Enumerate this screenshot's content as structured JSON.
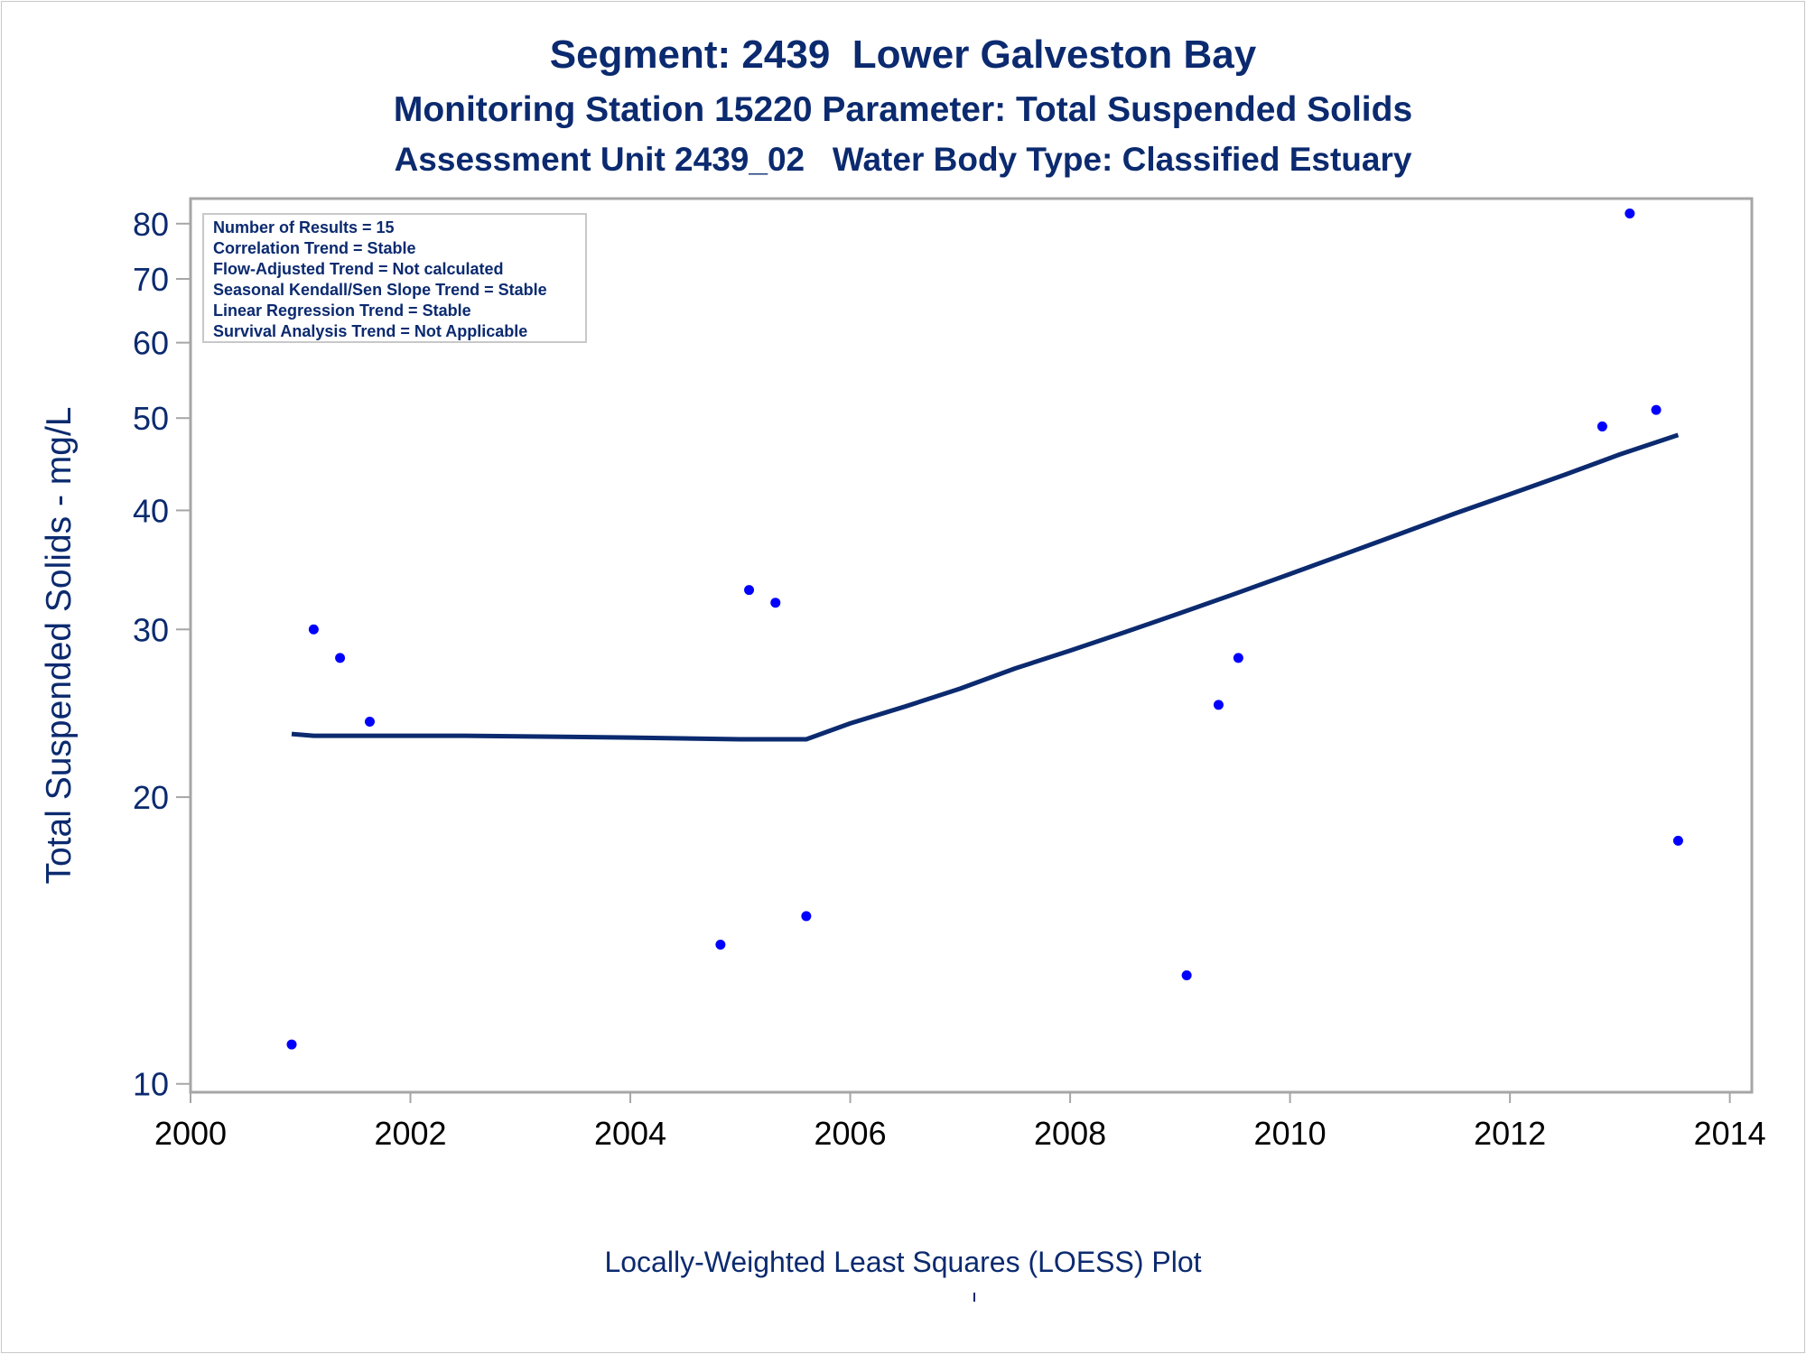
{
  "header": {
    "title": "Segment: 2439  Lower Galveston Bay",
    "subtitle": "Monitoring Station 15220 Parameter: Total Suspended Solids",
    "subtitle2": "Assessment Unit 2439_02   Water Body Type: Classified Estuary"
  },
  "stats_box": {
    "lines": [
      "Number of Results = 15",
      "Correlation Trend = Stable",
      "Flow-Adjusted Trend = Not calculated",
      "Seasonal Kendall/Sen Slope Trend = Stable",
      "Linear Regression Trend = Stable",
      "Survival Analysis Trend = Not Applicable"
    ]
  },
  "footnote": "Locally-Weighted Least Squares (LOESS) Plot",
  "colors": {
    "text": "#0b2a6f",
    "points": "#0000ff",
    "loess": "#0b2a6f",
    "frame": "#a6a6a6"
  },
  "chart_data": {
    "type": "scatter",
    "title": "Segment: 2439  Lower Galveston Bay",
    "xlabel": "",
    "ylabel": "Total Suspended Solids - mg/L",
    "y_scale": "log",
    "xlim": [
      2000,
      2014.2
    ],
    "ylim": [
      9.8,
      85
    ],
    "x_ticks": [
      2000,
      2002,
      2004,
      2006,
      2008,
      2010,
      2012,
      2014
    ],
    "y_ticks": [
      10,
      20,
      30,
      40,
      50,
      60,
      70,
      80
    ],
    "grid": false,
    "series": [
      {
        "type": "scatter",
        "x": [
          2000.92,
          2001.12,
          2001.36,
          2001.63,
          2004.82,
          2005.08,
          2005.32,
          2005.6,
          2009.06,
          2009.35,
          2009.53,
          2012.84,
          2013.09,
          2013.33,
          2013.53
        ],
        "y": [
          11,
          30,
          28,
          24,
          14,
          33,
          32,
          15,
          13,
          25,
          28,
          49,
          82,
          51,
          18
        ]
      },
      {
        "type": "line",
        "x": [
          2000.92,
          2001.12,
          2002.5,
          2004.0,
          2005.0,
          2005.6,
          2006.0,
          2006.5,
          2007.0,
          2007.5,
          2008.0,
          2008.5,
          2009.0,
          2009.5,
          2010.0,
          2010.5,
          2011.0,
          2011.5,
          2012.0,
          2012.5,
          2013.0,
          2013.53
        ],
        "y": [
          23.3,
          23.2,
          23.2,
          23.1,
          23.0,
          23.0,
          23.9,
          24.9,
          26.0,
          27.3,
          28.5,
          29.8,
          31.2,
          32.7,
          34.3,
          36.0,
          37.8,
          39.7,
          41.6,
          43.6,
          45.8,
          48.0
        ]
      }
    ]
  }
}
